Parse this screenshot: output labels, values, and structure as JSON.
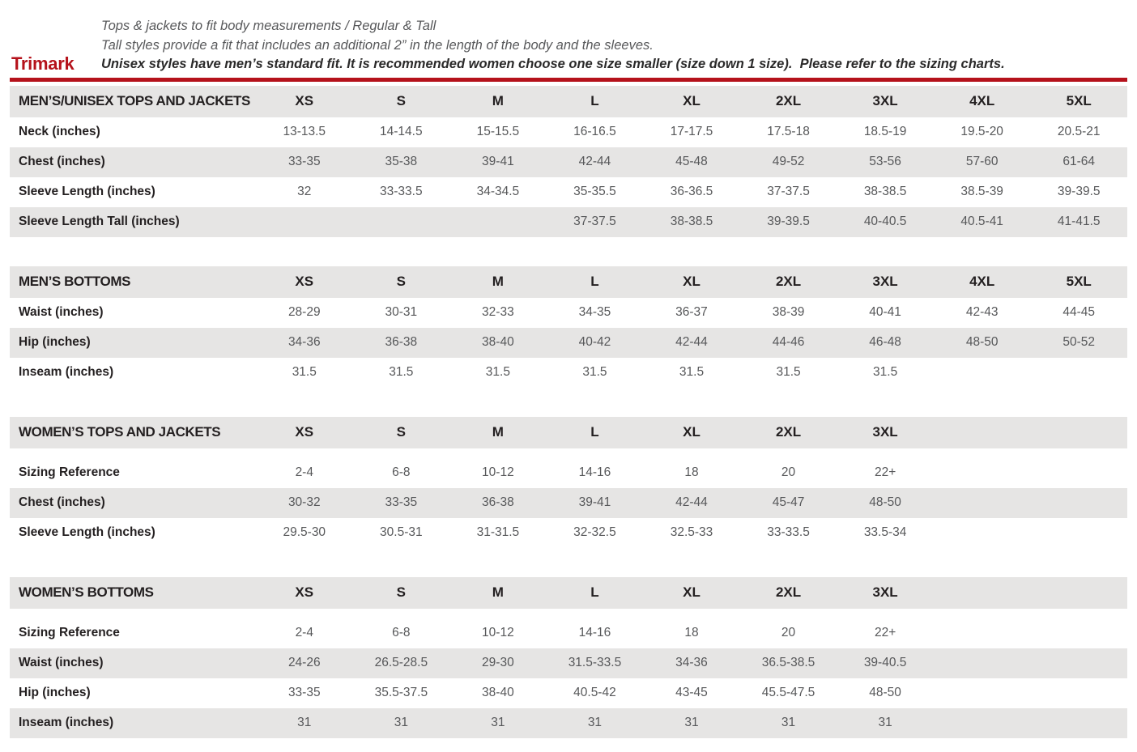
{
  "brand": "Trimark",
  "intro": {
    "line1": "Tops & jackets to fit body measurements / Regular & Tall",
    "line2": "Tall styles provide a fit that includes an additional 2” in the length of the body and the sleeves.",
    "line3": "Unisex styles have men’s standard fit. It is recommended women choose one size smaller (size down 1 size).  Please refer to the sizing charts."
  },
  "colors": {
    "accent_red": "#b5121b",
    "row_shade_gray": "#e6e5e4",
    "label_text": "#231f20",
    "value_text": "#57585a"
  },
  "grid_columns": 9,
  "tables": [
    {
      "title": "MEN’S/UNISEX TOPS AND JACKETS",
      "sizes": [
        "XS",
        "S",
        "M",
        "L",
        "XL",
        "2XL",
        "3XL",
        "4XL",
        "5XL"
      ],
      "rows": [
        {
          "label": "Neck (inches)",
          "values": [
            "13-13.5",
            "14-14.5",
            "15-15.5",
            "16-16.5",
            "17-17.5",
            "17.5-18",
            "18.5-19",
            "19.5-20",
            "20.5-21"
          ]
        },
        {
          "label": "Chest (inches)",
          "values": [
            "33-35",
            "35-38",
            "39-41",
            "42-44",
            "45-48",
            "49-52",
            "53-56",
            "57-60",
            "61-64"
          ]
        },
        {
          "label": "Sleeve Length (inches)",
          "values": [
            "32",
            "33-33.5",
            "34-34.5",
            "35-35.5",
            "36-36.5",
            "37-37.5",
            "38-38.5",
            "38.5-39",
            "39-39.5"
          ]
        },
        {
          "label": "Sleeve Length Tall (inches)",
          "values": [
            "",
            "",
            "",
            "37-37.5",
            "38-38.5",
            "39-39.5",
            "40-40.5",
            "40.5-41",
            "41-41.5"
          ]
        }
      ]
    },
    {
      "title": "MEN’S BOTTOMS",
      "sizes": [
        "XS",
        "S",
        "M",
        "L",
        "XL",
        "2XL",
        "3XL",
        "4XL",
        "5XL"
      ],
      "rows": [
        {
          "label": "Waist (inches)",
          "values": [
            "28-29",
            "30-31",
            "32-33",
            "34-35",
            "36-37",
            "38-39",
            "40-41",
            "42-43",
            "44-45"
          ]
        },
        {
          "label": "Hip (inches)",
          "values": [
            "34-36",
            "36-38",
            "38-40",
            "40-42",
            "42-44",
            "44-46",
            "46-48",
            "48-50",
            "50-52"
          ]
        },
        {
          "label": "Inseam (inches)",
          "values": [
            "31.5",
            "31.5",
            "31.5",
            "31.5",
            "31.5",
            "31.5",
            "31.5",
            "",
            ""
          ]
        }
      ]
    },
    {
      "title": "WOMEN’S TOPS AND JACKETS",
      "sizes": [
        "XS",
        "S",
        "M",
        "L",
        "XL",
        "2XL",
        "3XL"
      ],
      "rows": [
        {
          "label": "Sizing Reference",
          "values": [
            "2-4",
            "6-8",
            "10-12",
            "14-16",
            "18",
            "20",
            "22+"
          ]
        },
        {
          "label": "Chest (inches)",
          "values": [
            "30-32",
            "33-35",
            "36-38",
            "39-41",
            "42-44",
            "45-47",
            "48-50"
          ]
        },
        {
          "label": "Sleeve Length (inches)",
          "values": [
            "29.5-30",
            "30.5-31",
            "31-31.5",
            "32-32.5",
            "32.5-33",
            "33-33.5",
            "33.5-34"
          ]
        }
      ]
    },
    {
      "title": "WOMEN’S BOTTOMS",
      "sizes": [
        "XS",
        "S",
        "M",
        "L",
        "XL",
        "2XL",
        "3XL"
      ],
      "rows": [
        {
          "label": "Sizing Reference",
          "values": [
            "2-4",
            "6-8",
            "10-12",
            "14-16",
            "18",
            "20",
            "22+"
          ]
        },
        {
          "label": "Waist (inches)",
          "values": [
            "24-26",
            "26.5-28.5",
            "29-30",
            "31.5-33.5",
            "34-36",
            "36.5-38.5",
            "39-40.5"
          ]
        },
        {
          "label": "Hip (inches)",
          "values": [
            "33-35",
            "35.5-37.5",
            "38-40",
            "40.5-42",
            "43-45",
            "45.5-47.5",
            "48-50"
          ]
        },
        {
          "label": "Inseam (inches)",
          "values": [
            "31",
            "31",
            "31",
            "31",
            "31",
            "31",
            "31"
          ]
        }
      ]
    }
  ]
}
